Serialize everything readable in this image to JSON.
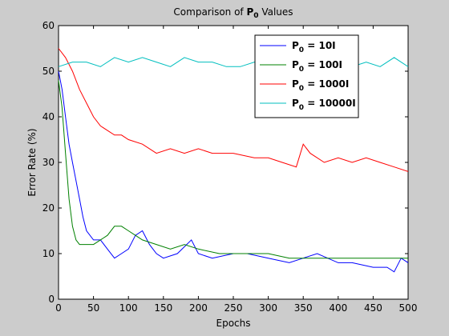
{
  "chart_data": {
    "type": "line",
    "title": {
      "prefix": "Comparison of ",
      "var": "P",
      "sub": "0",
      "suffix": " Values"
    },
    "xlabel": "Epochs",
    "ylabel": "Error Rate (%)",
    "xlim": [
      0,
      500
    ],
    "ylim": [
      0,
      60
    ],
    "xticks": [
      "0",
      "50",
      "100",
      "150",
      "200",
      "250",
      "300",
      "350",
      "400",
      "450",
      "500"
    ],
    "yticks": [
      "0",
      "10",
      "20",
      "30",
      "40",
      "50",
      "60"
    ],
    "grid": false,
    "legend_position": "top-right",
    "series": [
      {
        "var": "P",
        "sub": "0",
        "suffix": " = 10I",
        "color": "#0000ff",
        "x": [
          0,
          5,
          10,
          15,
          20,
          25,
          30,
          35,
          40,
          50,
          60,
          70,
          80,
          90,
          100,
          110,
          120,
          130,
          140,
          150,
          170,
          190,
          200,
          220,
          250,
          270,
          300,
          330,
          350,
          370,
          400,
          420,
          450,
          470,
          480,
          490,
          500
        ],
        "y": [
          50,
          46,
          40,
          34,
          30,
          26,
          22,
          18,
          15,
          13,
          13,
          11,
          9,
          10,
          11,
          14,
          15,
          12,
          10,
          9,
          10,
          13,
          10,
          9,
          10,
          10,
          9,
          8,
          9,
          10,
          8,
          8,
          7,
          7,
          6,
          9,
          8
        ]
      },
      {
        "var": "P",
        "sub": "0",
        "suffix": " = 100I",
        "color": "#008000",
        "x": [
          0,
          5,
          10,
          15,
          20,
          25,
          30,
          35,
          40,
          50,
          60,
          70,
          80,
          90,
          100,
          110,
          120,
          140,
          160,
          180,
          200,
          230,
          260,
          300,
          330,
          350,
          380,
          400,
          430,
          450,
          470,
          500
        ],
        "y": [
          48,
          42,
          32,
          22,
          16,
          13,
          12,
          12,
          12,
          12,
          13,
          14,
          16,
          16,
          15,
          14,
          13,
          12,
          11,
          12,
          11,
          10,
          10,
          10,
          9,
          9,
          9,
          9,
          9,
          9,
          9,
          9
        ]
      },
      {
        "var": "P",
        "sub": "0",
        "suffix": " = 1000I",
        "color": "#ff0000",
        "x": [
          0,
          10,
          20,
          30,
          40,
          50,
          60,
          70,
          80,
          90,
          100,
          120,
          140,
          160,
          180,
          200,
          220,
          250,
          280,
          300,
          320,
          340,
          350,
          360,
          380,
          400,
          420,
          440,
          460,
          480,
          500
        ],
        "y": [
          55,
          53,
          50,
          46,
          43,
          40,
          38,
          37,
          36,
          36,
          35,
          34,
          32,
          33,
          32,
          33,
          32,
          32,
          31,
          31,
          30,
          29,
          34,
          32,
          30,
          31,
          30,
          31,
          30,
          29,
          28
        ]
      },
      {
        "var": "P",
        "sub": "0",
        "suffix": " = 10000I",
        "color": "#00bfbf",
        "x": [
          0,
          20,
          40,
          60,
          80,
          100,
          120,
          140,
          160,
          180,
          200,
          220,
          240,
          260,
          280,
          300,
          320,
          340,
          360,
          380,
          400,
          420,
          440,
          460,
          480,
          500
        ],
        "y": [
          51,
          52,
          52,
          51,
          53,
          52,
          53,
          52,
          51,
          53,
          52,
          52,
          51,
          51,
          52,
          51,
          52,
          52,
          51,
          52,
          52,
          51,
          52,
          51,
          53,
          51
        ]
      }
    ]
  }
}
